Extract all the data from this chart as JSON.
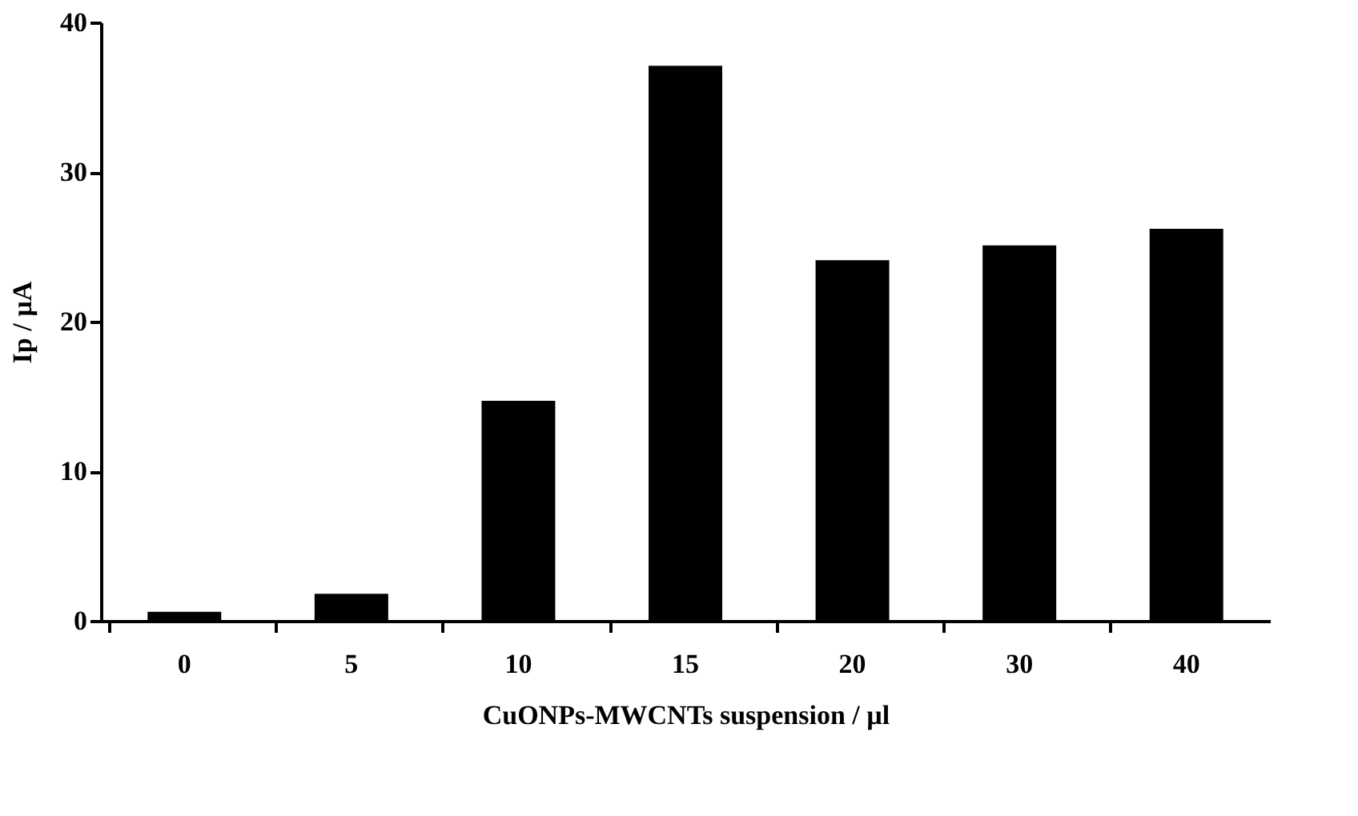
{
  "chart_data": {
    "type": "bar",
    "xlabel": "CuONPs-MWCNTs suspension / µl",
    "ylabel": "Ip / µA",
    "categories": [
      "0",
      "5",
      "10",
      "15",
      "20",
      "30",
      "40"
    ],
    "values": [
      0.6,
      1.8,
      14.7,
      37.1,
      24.1,
      25.1,
      26.2
    ],
    "color": "#000000",
    "ylim": [
      0,
      40
    ],
    "yticks": [
      0,
      10,
      20,
      30,
      40
    ],
    "grid": false
  }
}
